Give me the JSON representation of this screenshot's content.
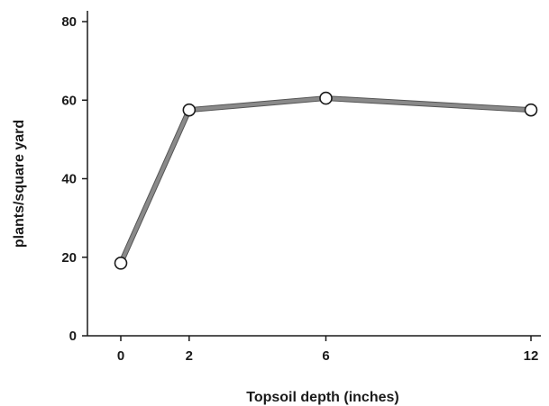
{
  "chart_data": {
    "type": "line",
    "title": "",
    "xlabel": "Topsoil depth (inches)",
    "ylabel": "plants/square yard",
    "x": [
      0,
      2,
      6,
      12
    ],
    "x_ticks": [
      "0",
      "2",
      "6",
      "12"
    ],
    "y_ticks": [
      "0",
      "20",
      "40",
      "60",
      "80"
    ],
    "xlim": [
      -0.5,
      12.5
    ],
    "ylim": [
      0,
      82
    ],
    "grid": false,
    "series": [
      {
        "values": [
          18.5,
          57.5,
          60.5,
          57.5
        ]
      }
    ],
    "colors": {
      "line": "#8a8a8a",
      "marker_fill": "#ffffff",
      "marker_stroke": "#1a1a1a",
      "axis": "#1a1a1a"
    }
  }
}
